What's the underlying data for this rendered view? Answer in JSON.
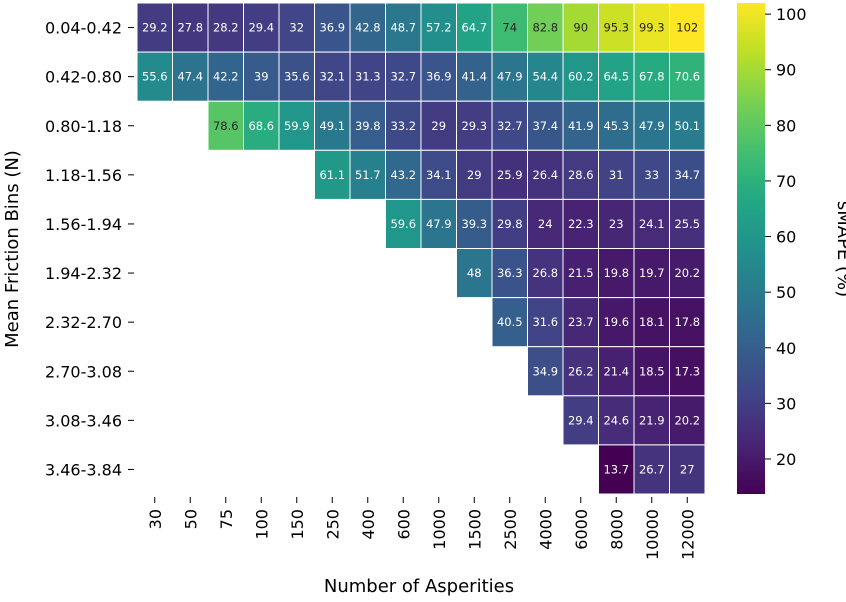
{
  "chart_data": {
    "type": "heatmap",
    "xlabel": "Number of Asperities",
    "ylabel": "Mean Friction Bins (N)",
    "colorbar_label": "sMAPE (%)",
    "colormap": "viridis",
    "vmin": 13.7,
    "vmax": 102,
    "colorbar_ticks": [
      20,
      30,
      40,
      50,
      60,
      70,
      80,
      90,
      100
    ],
    "x_categories": [
      "30",
      "50",
      "75",
      "100",
      "150",
      "250",
      "400",
      "600",
      "1000",
      "1500",
      "2500",
      "4000",
      "6000",
      "8000",
      "10000",
      "12000"
    ],
    "y_categories": [
      "0.04-0.42",
      "0.42-0.80",
      "0.80-1.18",
      "1.18-1.56",
      "1.56-1.94",
      "1.94-2.32",
      "2.32-2.70",
      "2.70-3.08",
      "3.08-3.46",
      "3.46-3.84"
    ],
    "values": [
      [
        29.2,
        27.8,
        28.2,
        29.4,
        32.0,
        36.9,
        42.8,
        48.7,
        57.2,
        64.7,
        74.0,
        82.8,
        90.0,
        95.3,
        99.3,
        102
      ],
      [
        55.6,
        47.4,
        42.2,
        39.0,
        35.6,
        32.1,
        31.3,
        32.7,
        36.9,
        41.4,
        47.9,
        54.4,
        60.2,
        64.5,
        67.8,
        70.6
      ],
      [
        null,
        null,
        78.6,
        68.6,
        59.9,
        49.1,
        39.8,
        33.2,
        29.0,
        29.3,
        32.7,
        37.4,
        41.9,
        45.3,
        47.9,
        50.1
      ],
      [
        null,
        null,
        null,
        null,
        null,
        61.1,
        51.7,
        43.2,
        34.1,
        29.0,
        25.9,
        26.4,
        28.6,
        31.0,
        33.0,
        34.7
      ],
      [
        null,
        null,
        null,
        null,
        null,
        null,
        null,
        59.6,
        47.9,
        39.3,
        29.8,
        24.0,
        22.3,
        23.0,
        24.1,
        25.5
      ],
      [
        null,
        null,
        null,
        null,
        null,
        null,
        null,
        null,
        null,
        48.0,
        36.3,
        26.8,
        21.5,
        19.8,
        19.7,
        20.2
      ],
      [
        null,
        null,
        null,
        null,
        null,
        null,
        null,
        null,
        null,
        null,
        40.5,
        31.6,
        23.7,
        19.6,
        18.1,
        17.8
      ],
      [
        null,
        null,
        null,
        null,
        null,
        null,
        null,
        null,
        null,
        null,
        null,
        34.9,
        26.2,
        21.4,
        18.5,
        17.3
      ],
      [
        null,
        null,
        null,
        null,
        null,
        null,
        null,
        null,
        null,
        null,
        null,
        null,
        29.4,
        24.6,
        21.9,
        20.2
      ],
      [
        null,
        null,
        null,
        null,
        null,
        null,
        null,
        null,
        null,
        null,
        null,
        null,
        null,
        13.7,
        26.7,
        27.0
      ]
    ]
  }
}
